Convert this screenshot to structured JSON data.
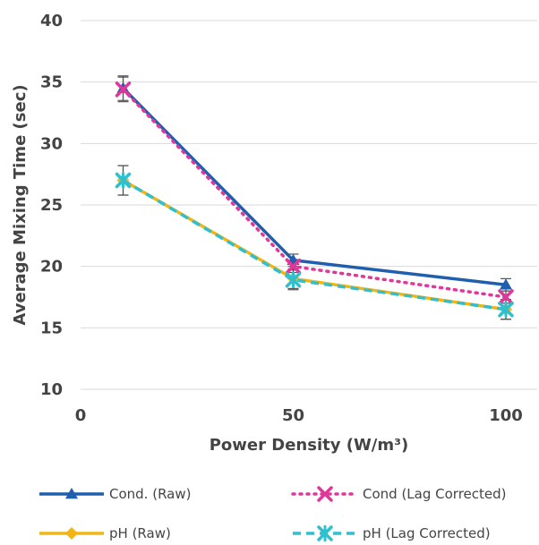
{
  "chart_data": {
    "type": "line",
    "xlabel": "Power Density (W/m³)",
    "ylabel": "Average Mixing Time (sec)",
    "xlim": [
      0,
      100
    ],
    "ylim": [
      10,
      40
    ],
    "xticks": [
      0,
      50,
      100
    ],
    "yticks": [
      10,
      15,
      20,
      25,
      30,
      35,
      40
    ],
    "x": [
      10,
      50,
      100
    ],
    "grid": "horizontal",
    "legend_position": "bottom",
    "series": [
      {
        "name": "Cond. (Raw)",
        "values": [
          34.5,
          20.5,
          18.5
        ],
        "errors": [
          1.0,
          0.5,
          0.5
        ],
        "color": "#1f5fae",
        "line": "solid",
        "marker": "triangle"
      },
      {
        "name": "Cond (Lag Corrected)",
        "values": [
          34.4,
          20.0,
          17.5
        ],
        "errors": [
          1.0,
          0.5,
          0.5
        ],
        "color": "#e0379b",
        "line": "dotted",
        "marker": "x"
      },
      {
        "name": "pH (Raw)",
        "values": [
          27.0,
          19.0,
          16.5
        ],
        "errors": [
          1.2,
          0.8,
          0.8
        ],
        "color": "#f2b515",
        "line": "solid",
        "marker": "diamond"
      },
      {
        "name": "pH (Lag Corrected)",
        "values": [
          27.0,
          18.9,
          16.5
        ],
        "errors": [
          1.2,
          0.8,
          0.8
        ],
        "color": "#2fc0cf",
        "line": "dashed",
        "marker": "star"
      }
    ]
  }
}
